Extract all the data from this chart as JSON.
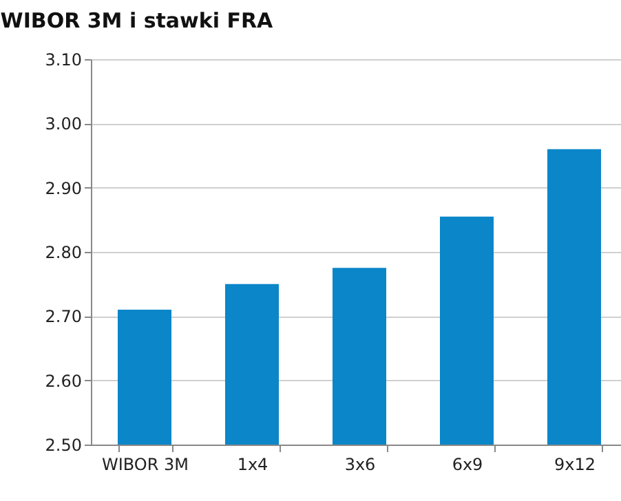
{
  "chart_data": {
    "type": "bar",
    "title": "WIBOR 3M i stawki FRA",
    "categories": [
      "WIBOR 3M",
      "1x4",
      "3x6",
      "6x9",
      "9x12"
    ],
    "values": [
      2.71,
      2.75,
      2.775,
      2.855,
      2.96
    ],
    "color": "#0a86c9",
    "ylim": [
      2.5,
      3.1
    ],
    "yticks": [
      {
        "value": 2.5,
        "label": "2.50"
      },
      {
        "value": 2.6,
        "label": "2.60"
      },
      {
        "value": 2.7,
        "label": "2.70"
      },
      {
        "value": 2.8,
        "label": "2.80"
      },
      {
        "value": 2.9,
        "label": "2.90"
      },
      {
        "value": 3.0,
        "label": "3.00"
      },
      {
        "value": 3.1,
        "label": "3.10"
      }
    ],
    "grid": "y"
  }
}
